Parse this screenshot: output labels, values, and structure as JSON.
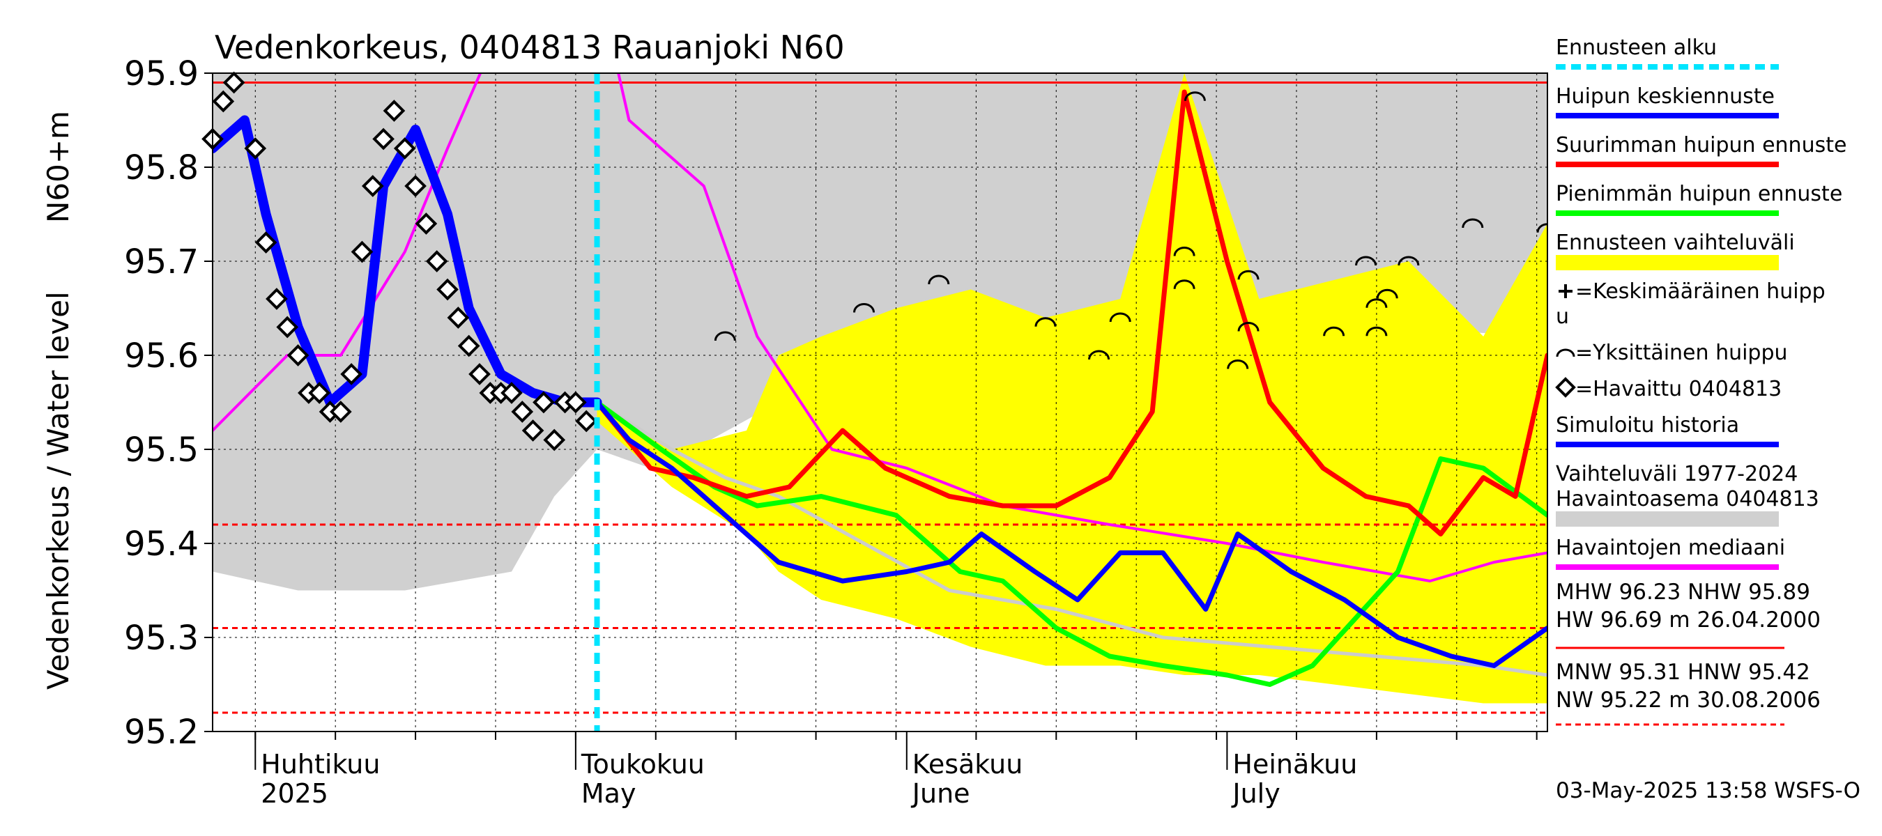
{
  "chart_data": {
    "type": "line",
    "title": "Vedenkorkeus, 0404813 Rauanjoki N60",
    "ylabel": "Vedenkorkeus / Water level",
    "yunit": "N60+m",
    "ylim": [
      95.2,
      95.9
    ],
    "yticks": [
      95.2,
      95.3,
      95.4,
      95.5,
      95.6,
      95.7,
      95.8,
      95.9
    ],
    "xlim": [
      "2025-03-28",
      "2025-07-31"
    ],
    "month_labels": [
      {
        "fi": "Huhtikuu",
        "en": "2025",
        "date": "2025-04-01"
      },
      {
        "fi": "Toukokuu",
        "en": "May",
        "date": "2025-05-01"
      },
      {
        "fi": "Kesäkuu",
        "en": "June",
        "date": "2025-06-01"
      },
      {
        "fi": "Heinäkuu",
        "en": "July",
        "date": "2025-07-01"
      }
    ],
    "forecast_start": "2025-05-03",
    "reference_lines": [
      {
        "name": "NHW",
        "value": 95.89,
        "color": "#ff0000",
        "style": "solid"
      },
      {
        "name": "HNW",
        "value": 95.42,
        "color": "#ff0000",
        "style": "dashed"
      },
      {
        "name": "MNW",
        "value": 95.31,
        "color": "#ff0000",
        "style": "dashed"
      },
      {
        "name": "NW",
        "value": 95.22,
        "color": "#ff0000",
        "style": "dashed"
      }
    ],
    "historical_range": {
      "color": "#d0d0d0",
      "x": [
        "2025-03-28",
        "2025-04-05",
        "2025-04-15",
        "2025-04-25",
        "2025-04-29",
        "2025-05-03",
        "2025-05-08",
        "2025-05-12",
        "2025-05-20",
        "2025-06-01",
        "2025-06-15",
        "2025-07-01",
        "2025-07-15",
        "2025-07-31"
      ],
      "upper": [
        95.9,
        95.9,
        95.9,
        95.9,
        95.9,
        95.9,
        95.9,
        95.9,
        95.9,
        95.9,
        95.9,
        95.9,
        95.9,
        95.9
      ],
      "lower": [
        95.37,
        95.35,
        95.35,
        95.37,
        95.45,
        95.5,
        95.48,
        95.5,
        95.55,
        95.62,
        95.63,
        95.61,
        95.63,
        95.62
      ]
    },
    "forecast_range": {
      "color": "#ffff00",
      "x": [
        "2025-05-03",
        "2025-05-10",
        "2025-05-17",
        "2025-05-20",
        "2025-05-24",
        "2025-05-31",
        "2025-06-07",
        "2025-06-14",
        "2025-06-21",
        "2025-06-27",
        "2025-07-04",
        "2025-07-11",
        "2025-07-18",
        "2025-07-25",
        "2025-07-31"
      ],
      "upper": [
        95.55,
        95.5,
        95.52,
        95.6,
        95.62,
        95.65,
        95.67,
        95.64,
        95.66,
        95.9,
        95.66,
        95.68,
        95.7,
        95.62,
        95.74
      ],
      "lower": [
        95.53,
        95.46,
        95.41,
        95.37,
        95.34,
        95.32,
        95.29,
        95.27,
        95.27,
        95.26,
        95.26,
        95.25,
        95.24,
        95.23,
        95.23
      ]
    },
    "series": [
      {
        "name": "Huipun keskiennuste",
        "color": "#0000ff",
        "width": 7,
        "x": [
          "2025-05-03",
          "2025-05-06",
          "2025-05-10",
          "2025-05-15",
          "2025-05-20",
          "2025-05-26",
          "2025-06-01",
          "2025-06-05",
          "2025-06-08",
          "2025-06-13",
          "2025-06-17",
          "2025-06-21",
          "2025-06-25",
          "2025-06-29",
          "2025-07-02",
          "2025-07-07",
          "2025-07-12",
          "2025-07-17",
          "2025-07-22",
          "2025-07-26",
          "2025-07-31"
        ],
        "y": [
          95.55,
          95.51,
          95.48,
          95.43,
          95.38,
          95.36,
          95.37,
          95.38,
          95.41,
          95.37,
          95.34,
          95.39,
          95.39,
          95.33,
          95.41,
          95.37,
          95.34,
          95.3,
          95.28,
          95.27,
          95.31
        ]
      },
      {
        "name": "Suurimman huipun ennuste",
        "color": "#ff0000",
        "width": 7,
        "x": [
          "2025-05-03",
          "2025-05-08",
          "2025-05-12",
          "2025-05-17",
          "2025-05-21",
          "2025-05-26",
          "2025-05-30",
          "2025-06-05",
          "2025-06-10",
          "2025-06-15",
          "2025-06-20",
          "2025-06-24",
          "2025-06-27",
          "2025-07-01",
          "2025-07-05",
          "2025-07-10",
          "2025-07-14",
          "2025-07-18",
          "2025-07-21",
          "2025-07-25",
          "2025-07-28",
          "2025-07-31"
        ],
        "y": [
          95.55,
          95.48,
          95.47,
          95.45,
          95.46,
          95.52,
          95.48,
          95.45,
          95.44,
          95.44,
          95.47,
          95.54,
          95.88,
          95.7,
          95.55,
          95.48,
          95.45,
          95.44,
          95.41,
          95.47,
          95.45,
          95.6
        ]
      },
      {
        "name": "Pienimmän huipun ennuste",
        "color": "#00ff00",
        "width": 7,
        "x": [
          "2025-05-03",
          "2025-05-09",
          "2025-05-14",
          "2025-05-18",
          "2025-05-24",
          "2025-05-31",
          "2025-06-06",
          "2025-06-10",
          "2025-06-15",
          "2025-06-20",
          "2025-06-25",
          "2025-07-01",
          "2025-07-05",
          "2025-07-09",
          "2025-07-13",
          "2025-07-17",
          "2025-07-21",
          "2025-07-25",
          "2025-07-31"
        ],
        "y": [
          95.55,
          95.5,
          95.46,
          95.44,
          95.45,
          95.43,
          95.37,
          95.36,
          95.31,
          95.28,
          95.27,
          95.26,
          95.25,
          95.27,
          95.32,
          95.37,
          95.49,
          95.48,
          95.43
        ]
      },
      {
        "name": "Simuloitu historia",
        "color": "#0000ff",
        "width": 14,
        "x": [
          "2025-03-28",
          "2025-03-31",
          "2025-04-02",
          "2025-04-05",
          "2025-04-08",
          "2025-04-11",
          "2025-04-13",
          "2025-04-16",
          "2025-04-19",
          "2025-04-21",
          "2025-04-24",
          "2025-04-27",
          "2025-04-30",
          "2025-05-03"
        ],
        "y": [
          95.82,
          95.85,
          95.75,
          95.63,
          95.55,
          95.58,
          95.78,
          95.84,
          95.75,
          95.65,
          95.58,
          95.56,
          95.55,
          95.55
        ]
      },
      {
        "name": "Havaintojen mediaani",
        "color": "#ff00ff",
        "width": 4,
        "x": [
          "2025-03-28",
          "2025-04-04",
          "2025-04-09",
          "2025-04-15",
          "2025-04-19",
          "2025-04-24",
          "2025-05-01",
          "2025-05-06",
          "2025-05-13",
          "2025-05-18",
          "2025-05-25",
          "2025-06-01",
          "2025-06-10",
          "2025-06-20",
          "2025-07-01",
          "2025-07-10",
          "2025-07-20",
          "2025-07-26",
          "2025-07-31"
        ],
        "y": [
          95.52,
          95.6,
          95.6,
          95.71,
          95.82,
          95.95,
          96.1,
          95.85,
          95.78,
          95.62,
          95.5,
          95.48,
          95.44,
          95.42,
          95.4,
          95.38,
          95.36,
          95.38,
          95.39
        ]
      },
      {
        "name": "Havaintoasema 0404813 simulated (grey)",
        "color": "#cccccc",
        "width": 5,
        "x": [
          "2025-05-03",
          "2025-05-10",
          "2025-05-15",
          "2025-05-20",
          "2025-05-28",
          "2025-06-05",
          "2025-06-15",
          "2025-06-25",
          "2025-07-05",
          "2025-07-15",
          "2025-07-25",
          "2025-07-31"
        ],
        "y": [
          95.55,
          95.5,
          95.47,
          95.45,
          95.4,
          95.35,
          95.33,
          95.3,
          95.29,
          95.28,
          95.27,
          95.26
        ]
      }
    ],
    "observed": {
      "name": "Havaittu 0404813",
      "x": [
        "2025-03-28",
        "2025-03-29",
        "2025-03-30",
        "2025-04-01",
        "2025-04-02",
        "2025-04-03",
        "2025-04-04",
        "2025-04-05",
        "2025-04-06",
        "2025-04-07",
        "2025-04-08",
        "2025-04-09",
        "2025-04-10",
        "2025-04-11",
        "2025-04-12",
        "2025-04-13",
        "2025-04-14",
        "2025-04-15",
        "2025-04-16",
        "2025-04-17",
        "2025-04-18",
        "2025-04-19",
        "2025-04-20",
        "2025-04-21",
        "2025-04-22",
        "2025-04-23",
        "2025-04-24",
        "2025-04-25",
        "2025-04-26",
        "2025-04-27",
        "2025-04-28",
        "2025-04-29",
        "2025-04-30",
        "2025-05-01",
        "2025-05-02"
      ],
      "y": [
        95.83,
        95.87,
        95.89,
        95.82,
        95.72,
        95.66,
        95.63,
        95.6,
        95.56,
        95.56,
        95.54,
        95.54,
        95.58,
        95.71,
        95.78,
        95.83,
        95.86,
        95.82,
        95.78,
        95.74,
        95.7,
        95.67,
        95.64,
        95.61,
        95.58,
        95.56,
        95.56,
        95.56,
        95.54,
        95.52,
        95.55,
        95.51,
        95.55,
        95.55,
        95.53
      ]
    },
    "single_peaks": [
      {
        "x": "2025-05-15",
        "y": 95.62
      },
      {
        "x": "2025-05-28",
        "y": 95.65
      },
      {
        "x": "2025-06-04",
        "y": 95.68
      },
      {
        "x": "2025-06-14",
        "y": 95.635
      },
      {
        "x": "2025-06-19",
        "y": 95.6
      },
      {
        "x": "2025-06-21",
        "y": 95.64
      },
      {
        "x": "2025-06-27",
        "y": 95.71
      },
      {
        "x": "2025-06-27",
        "y": 95.675
      },
      {
        "x": "2025-06-28",
        "y": 95.875
      },
      {
        "x": "2025-07-03",
        "y": 95.685
      },
      {
        "x": "2025-07-03",
        "y": 95.63
      },
      {
        "x": "2025-07-02",
        "y": 95.59
      },
      {
        "x": "2025-07-11",
        "y": 95.625
      },
      {
        "x": "2025-07-14",
        "y": 95.7
      },
      {
        "x": "2025-07-15",
        "y": 95.655
      },
      {
        "x": "2025-07-15",
        "y": 95.625
      },
      {
        "x": "2025-07-16",
        "y": 95.665
      },
      {
        "x": "2025-07-18",
        "y": 95.7
      },
      {
        "x": "2025-07-24",
        "y": 95.74
      },
      {
        "x": "2025-07-31",
        "y": 95.735
      }
    ],
    "legend": {
      "position": "right",
      "items": [
        {
          "label": "Ennusteen alku",
          "kind": "dashed",
          "color": "#00e5ff"
        },
        {
          "label": "Huipun keskiennuste",
          "kind": "line",
          "color": "#0000ff"
        },
        {
          "label": "Suurimman huipun ennuste",
          "kind": "line",
          "color": "#ff0000"
        },
        {
          "label": "Pienimmän huipun ennuste",
          "kind": "line",
          "color": "#00ff00"
        },
        {
          "label": "Ennusteen vaihteluväli",
          "kind": "band",
          "color": "#ffff00"
        },
        {
          "label": "=Keskimääräinen huipp",
          "label2": "u",
          "kind": "plus",
          "color": "#000000"
        },
        {
          "label": "=Yksittäinen huippu",
          "kind": "arc",
          "color": "#000000"
        },
        {
          "label": "=Havaittu 0404813",
          "kind": "diamond",
          "color": "#000000"
        },
        {
          "label": "Simuloitu historia",
          "kind": "line",
          "color": "#0000ff"
        },
        {
          "label": "Vaihteluväli 1977-2024",
          "label2": " Havaintoasema 0404813",
          "kind": "band",
          "color": "#d0d0d0"
        },
        {
          "label": "Havaintojen mediaani",
          "kind": "line",
          "color": "#ff00ff"
        }
      ]
    },
    "stats": {
      "line1": "MHW  96.23 NHW  95.89",
      "line2": "HW  96.69 m 26.04.2000",
      "line3": "MNW  95.31 HNW  95.42",
      "line4": "NW  95.22 m 30.08.2006"
    },
    "timestamp": "03-May-2025 13:58 WSFS-O"
  }
}
